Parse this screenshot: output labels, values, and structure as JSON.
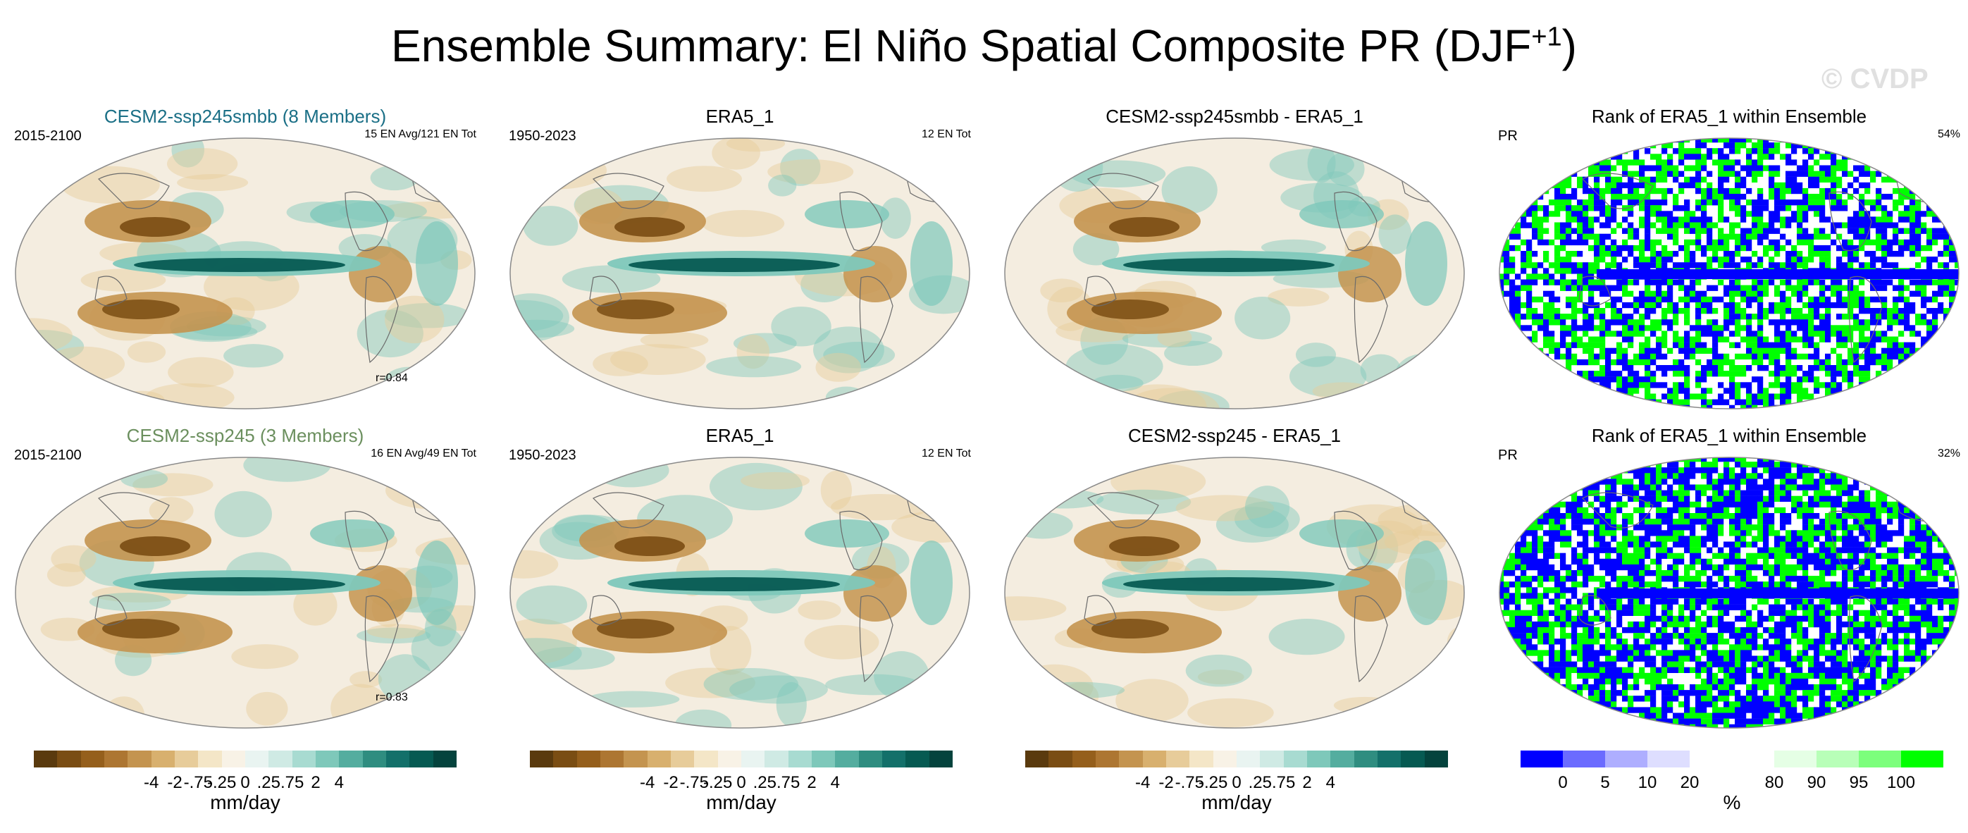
{
  "title": "Ensemble Summary: El Niño Spatial Composite PR (DJF",
  "title_sup": "+1",
  "title_close": ")",
  "watermark": "© CVDP",
  "panels": {
    "r1c1": {
      "title": "CESM2-ssp245smbb (8 Members)",
      "title_color": "#1a6f86",
      "left": "2015-2100",
      "right": "15 EN Avg/121 EN Tot",
      "r": "r=0.84",
      "type": "pattern"
    },
    "r1c2": {
      "title": "ERA5_1",
      "title_color": "#000000",
      "left": "1950-2023",
      "right": "12 EN Tot",
      "type": "pattern"
    },
    "r1c3": {
      "title": "CESM2-ssp245smbb - ERA5_1",
      "title_color": "#000000",
      "type": "pattern"
    },
    "r1c4": {
      "title": "Rank of ERA5_1 within Ensemble",
      "title_color": "#000000",
      "left": "PR",
      "right": "54%",
      "type": "rank"
    },
    "r2c1": {
      "title": "CESM2-ssp245 (3 Members)",
      "title_color": "#6b8f5e",
      "left": "2015-2100",
      "right": "16 EN Avg/49 EN Tot",
      "r": "r=0.83",
      "type": "pattern"
    },
    "r2c2": {
      "title": "ERA5_1",
      "title_color": "#000000",
      "left": "1950-2023",
      "right": "12 EN Tot",
      "type": "pattern"
    },
    "r2c3": {
      "title": "CESM2-ssp245 - ERA5_1",
      "title_color": "#000000",
      "type": "pattern"
    },
    "r2c4": {
      "title": "Rank of ERA5_1 within Ensemble",
      "title_color": "#000000",
      "left": "PR",
      "right": "32%",
      "type": "rank"
    }
  },
  "colorbars": {
    "brbg": {
      "colors": [
        "#5a3a0e",
        "#7a4d13",
        "#955f1c",
        "#ad7632",
        "#c4944f",
        "#d8b06e",
        "#e7cc9a",
        "#f4e6c7",
        "#f8f2e6",
        "#e9f4f1",
        "#cfeae4",
        "#a8dbd1",
        "#7ec8ba",
        "#54ad9f",
        "#2f8d80",
        "#13706a",
        "#065a52",
        "#04433d"
      ],
      "ticks": [
        "-4",
        "-2",
        "-.75",
        "-.25",
        "0",
        ".25",
        ".75",
        "2",
        "4"
      ],
      "unit": "mm/day"
    },
    "rank": {
      "colors": [
        "#0000ff",
        "#6b6bff",
        "#aeaeff",
        "#dedeff",
        "#ffffff",
        "#ffffff",
        "#e5ffe5",
        "#b8ffb8",
        "#7cff7c",
        "#00ff00"
      ],
      "ticks": [
        "0",
        "5",
        "10",
        "20",
        "80",
        "90",
        "95",
        "100"
      ],
      "unit": "%"
    }
  },
  "chart_data": [
    {
      "type": "heatmap",
      "title": "CESM2-ssp245smbb (8 Members)",
      "period": "2015-2100",
      "annotation": "15 EN Avg/121 EN Tot",
      "pattern_correlation": 0.84,
      "units": "mm/day",
      "levels": [
        "-4",
        "-2",
        "-.75",
        "-.25",
        "0",
        ".25",
        ".75",
        "2",
        "4"
      ]
    },
    {
      "type": "heatmap",
      "title": "ERA5_1",
      "period": "1950-2023",
      "annotation": "12 EN Tot",
      "units": "mm/day"
    },
    {
      "type": "heatmap",
      "title": "CESM2-ssp245smbb - ERA5_1",
      "units": "mm/day"
    },
    {
      "type": "heatmap",
      "title": "Rank of ERA5_1 within Ensemble",
      "variable": "PR",
      "percent": 54,
      "units": "%",
      "levels": [
        "0",
        "5",
        "10",
        "20",
        "80",
        "90",
        "95",
        "100"
      ]
    },
    {
      "type": "heatmap",
      "title": "CESM2-ssp245 (3 Members)",
      "period": "2015-2100",
      "annotation": "16 EN Avg/49 EN Tot",
      "pattern_correlation": 0.83,
      "units": "mm/day"
    },
    {
      "type": "heatmap",
      "title": "ERA5_1",
      "period": "1950-2023",
      "annotation": "12 EN Tot",
      "units": "mm/day"
    },
    {
      "type": "heatmap",
      "title": "CESM2-ssp245 - ERA5_1",
      "units": "mm/day"
    },
    {
      "type": "heatmap",
      "title": "Rank of ERA5_1 within Ensemble",
      "variable": "PR",
      "percent": 32,
      "units": "%"
    }
  ]
}
